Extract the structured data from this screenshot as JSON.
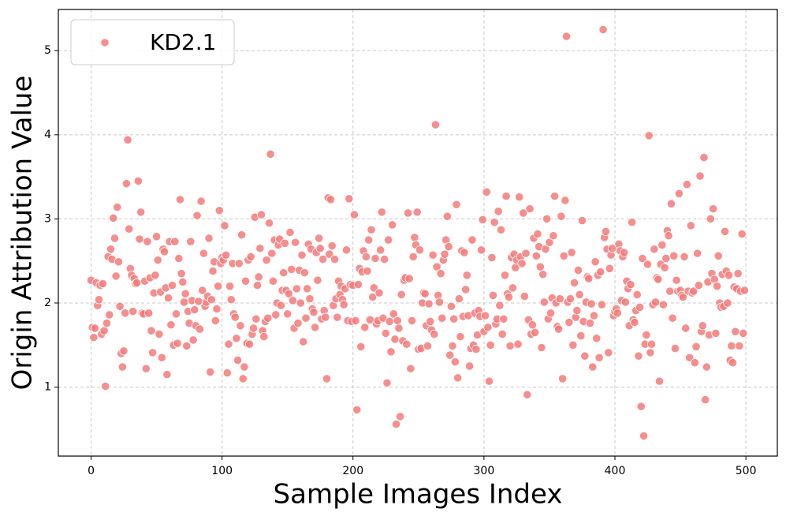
{
  "chart_data": {
    "type": "scatter",
    "x_label": "Sample Images Index",
    "y_label": "Origin Attribution Value",
    "xlim": [
      -25,
      524
    ],
    "ylim": [
      0.18,
      5.49
    ],
    "xticks": [
      0,
      100,
      200,
      300,
      400,
      500
    ],
    "yticks": [
      1,
      2,
      3,
      4,
      5
    ],
    "grid": true,
    "legend": "upper-left",
    "series": [
      {
        "name": "KD2.1",
        "color": "#f47a7a",
        "values": [
          2.27,
          1.71,
          1.59,
          1.7,
          2.24,
          1.97,
          2.04,
          2.21,
          1.63,
          2.23,
          1.67,
          1.01,
          1.76,
          2.55,
          1.86,
          2.64,
          2.52,
          3.01,
          2.77,
          2.32,
          3.14,
          2.49,
          1.96,
          1.4,
          1.24,
          1.43,
          1.88,
          3.42,
          3.94,
          2.88,
          2.41,
          2.33,
          1.9,
          2.29,
          2.23,
          2.24,
          3.45,
          2.76,
          3.08,
          1.88,
          1.87,
          2.26,
          1.22,
          2.73,
          1.88,
          2.3,
          1.67,
          1.41,
          2.12,
          2.33,
          2.79,
          2.51,
          1.63,
          2.13,
          1.35,
          2.64,
          2.61,
          2.18,
          1.15,
          2.06,
          2.73,
          1.74,
          2.21,
          1.5,
          2.73,
          1.87,
          1.52,
          2.53,
          3.23,
          2.35,
          2.25,
          2.01,
          2.11,
          1.49,
          1.9,
          1.76,
          2.73,
          2.03,
          1.56,
          1.92,
          1.73,
          3.04,
          2.02,
          1.69,
          3.21,
          2.15,
          2.59,
          1.96,
          2.01,
          2.08,
          2.77,
          1.18,
          2.04,
          2.38,
          2.49,
          1.79,
          1.93,
          2.2,
          3.1,
          2.47,
          2.54,
          2.51,
          2.92,
          2.57,
          1.17,
          1.51,
          2.2,
          2.04,
          2.47,
          1.87,
          1.83,
          1.58,
          1.32,
          2.47,
          1.73,
          2.81,
          1.1,
          1.24,
          2.26,
          1.52,
          2.51,
          1.51,
          2.55,
          1.63,
          1.7,
          3.02,
          1.81,
          2.21,
          2.31,
          2.65,
          3.05,
          1.67,
          1.6,
          1.78,
          2.51,
          1.82,
          2.95,
          3.77,
          2.59,
          2.26,
          2.75,
          1.86,
          2.0,
          2.69,
          2.76,
          1.97,
          2.15,
          2.36,
          2.71,
          2.15,
          1.87,
          2.11,
          2.84,
          2.4,
          2.03,
          1.7,
          2.72,
          2.17,
          1.76,
          2.39,
          2.0,
          2.57,
          1.54,
          2.36,
          1.82,
          2.17,
          2.7,
          2.05,
          2.64,
          1.93,
          1.89,
          1.71,
          2.6,
          2.27,
          2.77,
          2.65,
          1.81,
          2.52,
          1.91,
          1.83,
          1.1,
          3.25,
          2.58,
          3.23,
          2.68,
          1.97,
          2.52,
          2.05,
          1.83,
          2.26,
          2.1,
          2.2,
          2.04,
          1.98,
          2.17,
          2.63,
          1.79,
          3.24,
          2.22,
          1.78,
          2.21,
          3.05,
          1.79,
          0.73,
          2.22,
          2.41,
          1.48,
          2.37,
          2.62,
          1.71,
          2.55,
          2.38,
          2.75,
          1.8,
          2.87,
          2.07,
          2.18,
          2.53,
          1.75,
          1.79,
          2.12,
          2.63,
          3.08,
          1.82,
          2.52,
          1.64,
          1.05,
          2.75,
          1.78,
          1.42,
          2.93,
          1.87,
          1.57,
          0.56,
          1.79,
          1.7,
          0.65,
          2.1,
          1.55,
          2.27,
          2.3,
          1.51,
          3.07,
          2.29,
          1.22,
          1.79,
          2.55,
          2.78,
          2.69,
          3.08,
          1.45,
          2.63,
          1.46,
          2.0,
          2.12,
          2.11,
          1.73,
          1.49,
          1.99,
          1.78,
          1.68,
          2.57,
          1.63,
          4.12,
          2.43,
          2.09,
          2.01,
          2.35,
          1.82,
          2.51,
          2.58,
          2.75,
          3.03,
          2.67,
          1.38,
          1.96,
          1.49,
          1.81,
          1.3,
          3.17,
          1.11,
          2.05,
          1.6,
          2.62,
          1.84,
          2.6,
          2.16,
          2.33,
          1.85,
          1.25,
          1.46,
          2.75,
          1.5,
          1.88,
          1.45,
          1.62,
          1.91,
          1.84,
          2.63,
          2.99,
          1.66,
          1.85,
          3.32,
          1.71,
          1.07,
          1.5,
          2.54,
          2.09,
          2.96,
          1.75,
          1.81,
          3.09,
          1.97,
          2.87,
          1.63,
          1.81,
          2.33,
          3.27,
          2.11,
          2.07,
          1.49,
          2.54,
          2.18,
          2.58,
          2.42,
          2.51,
          1.51,
          3.26,
          2.55,
          2.47,
          3.07,
          2.08,
          2.59,
          0.91,
          1.8,
          3.12,
          1.63,
          1.74,
          2.77,
          1.65,
          2.56,
          2.82,
          2.67,
          2.43,
          1.47,
          2.34,
          2.01,
          2.64,
          3.0,
          1.81,
          2.72,
          1.88,
          2.06,
          2.8,
          3.27,
          2.0,
          1.72,
          1.69,
          2.05,
          3.03,
          1.1,
          2.56,
          3.22,
          5.17,
          2.01,
          1.77,
          2.05,
          2.6,
          1.5,
          2.24,
          1.83,
          1.91,
          2.39,
          2.1,
          1.61,
          2.98,
          1.78,
          1.37,
          2.01,
          2.31,
          2.29,
          1.76,
          1.99,
          1.24,
          1.85,
          2.49,
          1.58,
          2.33,
          1.35,
          2.37,
          1.98,
          5.25,
          2.78,
          2.85,
          2.64,
          1.41,
          2.41,
          2.57,
          2.65,
          1.85,
          1.9,
          1.93,
          1.88,
          2.7,
          2.62,
          2.03,
          2.55,
          2.6,
          2.01,
          2.26,
          2.17,
          1.73,
          2.22,
          2.96,
          1.8,
          1.77,
          1.91,
          2.1,
          1.37,
          1.95,
          0.77,
          2.53,
          0.42,
          1.51,
          1.62,
          2.46,
          3.99,
          1.41,
          1.51,
          1.98,
          2.64,
          2.01,
          2.3,
          2.28,
          1.07,
          2.46,
          2.69,
          1.98,
          2.42,
          2.53,
          2.86,
          2.8,
          2.14,
          3.18,
          1.82,
          2.56,
          1.46,
          2.27,
          2.14,
          3.3,
          2.15,
          2.09,
          2.07,
          2.55,
          1.7,
          3.41,
          2.14,
          1.35,
          2.92,
          2.12,
          2.14,
          1.29,
          1.48,
          2.59,
          2.21,
          3.51,
          1.66,
          1.73,
          3.73,
          0.85,
          1.24,
          2.25,
          1.62,
          3.0,
          2.35,
          3.12,
          2.28,
          1.64,
          2.2,
          2.56,
          2.0,
          1.95,
          2.34,
          1.96,
          2.85,
          2.38,
          2.0,
          2.33,
          1.32,
          1.49,
          1.29,
          2.19,
          1.66,
          2.17,
          2.35,
          1.49,
          2.14,
          2.82,
          1.64,
          2.15
        ]
      }
    ]
  }
}
